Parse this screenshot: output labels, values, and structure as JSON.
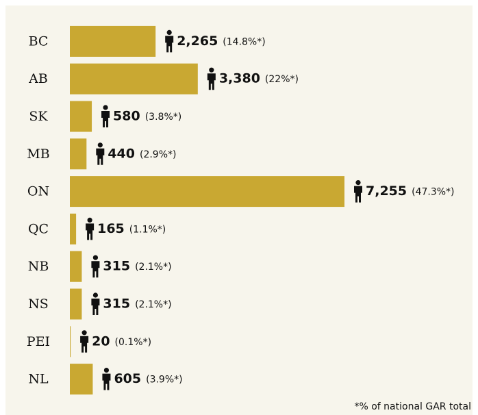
{
  "chart_data": {
    "type": "bar",
    "orientation": "horizontal",
    "categories": [
      "BC",
      "AB",
      "SK",
      "MB",
      "ON",
      "QC",
      "NB",
      "NS",
      "PEI",
      "NL"
    ],
    "values": [
      2265,
      3380,
      580,
      440,
      7255,
      165,
      315,
      315,
      20,
      605
    ],
    "value_labels": [
      "2,265",
      "3,380",
      "580",
      "440",
      "7,255",
      "165",
      "315",
      "315",
      "20",
      "605"
    ],
    "notes": [
      "(14.8%*)",
      "(22%*)",
      "(3.8%*)",
      "(2.9%*)",
      "(47.3%*)",
      "(1.1%*)",
      "(2.1%*)",
      "(2.1%*)",
      "(0.1%*)",
      "(3.9%*)"
    ],
    "color": "#c9a832",
    "footnote": "*% of national GAR total"
  }
}
